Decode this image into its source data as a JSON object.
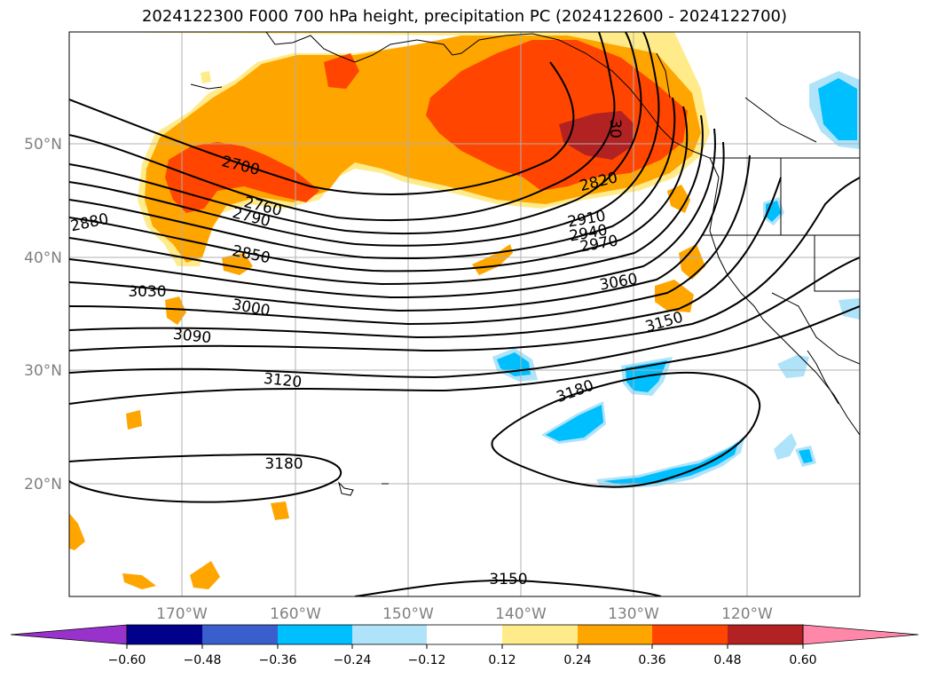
{
  "title": "2024122300 F000 700 hPa height, precipitation PC (2024122600 - 2024122700)",
  "map": {
    "lon_range": [
      -180,
      -110
    ],
    "lat_range": [
      10,
      60
    ],
    "lat_labels": [
      "20°N",
      "30°N",
      "40°N",
      "50°N"
    ],
    "lon_labels": [
      "170°W",
      "160°W",
      "150°W",
      "140°W",
      "130°W",
      "120°W"
    ]
  },
  "contour_labels": [
    "2700",
    "2760",
    "2790",
    "2820",
    "2850",
    "2880",
    "2910",
    "2940",
    "2970",
    "3000",
    "3030",
    "3060",
    "3090",
    "3120",
    "3150",
    "3150",
    "3180",
    "3180",
    "30"
  ],
  "colorbar": {
    "colors": [
      "#9932cc",
      "#00008b",
      "#3a5fcd",
      "#00bfff",
      "#aee3fa",
      "#ffffff",
      "#ffeb8a",
      "#ffa500",
      "#ff4500",
      "#b22222",
      "#ff88aa"
    ],
    "ticks": [
      "−0.60",
      "−0.48",
      "−0.36",
      "−0.24",
      "−0.12",
      "0.12",
      "0.24",
      "0.36",
      "0.48",
      "0.60"
    ]
  }
}
